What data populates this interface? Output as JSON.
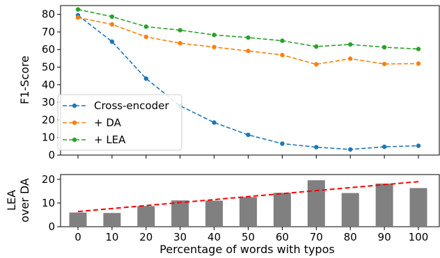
{
  "chart_data": [
    {
      "type": "line",
      "x": [
        0,
        10,
        20,
        30,
        40,
        50,
        60,
        70,
        80,
        90,
        100
      ],
      "ylabel": "F1-Score",
      "ylim": [
        0,
        85
      ],
      "yticks": [
        0,
        10,
        20,
        30,
        40,
        50,
        60,
        70,
        80
      ],
      "grid": false,
      "legend_position": "lower-left",
      "series": [
        {
          "name": "Cross-encoder",
          "color": "#1f77b4",
          "values": [
            79.5,
            64.5,
            43.5,
            28.0,
            18.5,
            11.5,
            6.5,
            4.5,
            3.2,
            4.7,
            5.3
          ]
        },
        {
          "name": " + DA",
          "color": "#ff7f0e",
          "values": [
            78.2,
            74.3,
            67.2,
            63.6,
            61.4,
            59.2,
            56.9,
            51.6,
            54.8,
            51.8,
            52.0
          ]
        },
        {
          "name": " + LEA",
          "color": "#2ca02c",
          "values": [
            82.8,
            78.7,
            73.0,
            71.0,
            68.3,
            66.8,
            65.0,
            61.7,
            62.9,
            61.3,
            60.3
          ]
        }
      ]
    },
    {
      "type": "bar",
      "categories": [
        "0",
        "10",
        "20",
        "30",
        "40",
        "50",
        "60",
        "70",
        "80",
        "90",
        "100"
      ],
      "values": [
        6.0,
        5.8,
        8.7,
        11.1,
        11.0,
        12.5,
        14.3,
        19.6,
        14.2,
        18.2,
        16.3
      ],
      "bar_color": "#808080",
      "trend_line": {
        "color": "#ff0000",
        "start": 6.4,
        "end": 19.0
      },
      "xlabel": "Percentage of words with typos",
      "ylabel": [
        "LEA",
        "over DA"
      ],
      "ylim": [
        0,
        22
      ],
      "yticks": [
        0,
        10,
        20
      ],
      "grid": false
    }
  ]
}
